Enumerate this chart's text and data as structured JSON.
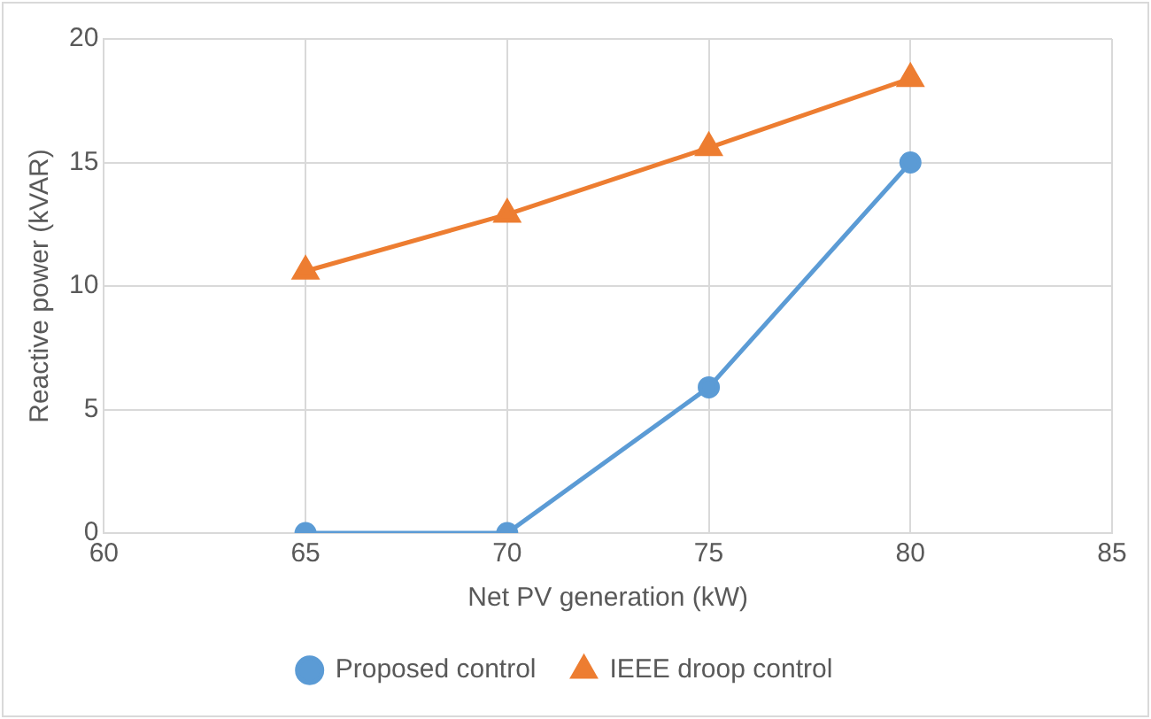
{
  "chart_data": {
    "type": "line",
    "xlabel": "Net PV generation (kW)",
    "ylabel": "Reactive power (kVAR)",
    "x": [
      65,
      70,
      75,
      80
    ],
    "series": [
      {
        "name": "Proposed control",
        "color": "#5b9bd5",
        "values": [
          0,
          0,
          5.9,
          15.0
        ],
        "marker": "circle"
      },
      {
        "name": "IEEE droop control",
        "color": "#ed7d31",
        "values": [
          10.6,
          12.9,
          15.6,
          18.4
        ],
        "marker": "triangle"
      }
    ],
    "xlim": [
      60,
      85
    ],
    "xticks": [
      60,
      65,
      70,
      75,
      80,
      85
    ],
    "ylim": [
      0,
      20
    ],
    "yticks": [
      0,
      5,
      10,
      15,
      20
    ],
    "grid": true,
    "legend": "bottom"
  }
}
